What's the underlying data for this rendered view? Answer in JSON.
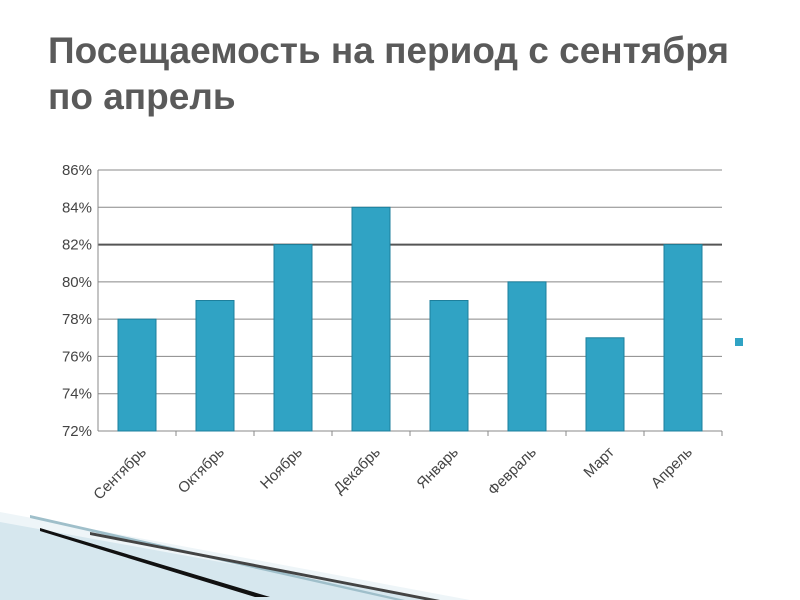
{
  "slide": {
    "title": "Посещаемость на период с сентября по апрель"
  },
  "colors": {
    "bar": "#30a3c4",
    "bar_stroke": "#1d7f9c",
    "grid": "#888888",
    "accent_line": "#555555"
  },
  "chart_data": {
    "type": "bar",
    "title": "",
    "xlabel": "",
    "ylabel": "",
    "categories": [
      "Сентябрь",
      "Октябрь",
      "Ноябрь",
      "Декабрь",
      "Январь",
      "Февраль",
      "Март",
      "Апрель"
    ],
    "series": [
      {
        "values": [
          78,
          79,
          82,
          84,
          79,
          80,
          77,
          82
        ]
      }
    ],
    "ylim": [
      72,
      86
    ],
    "yticks": [
      72,
      74,
      76,
      78,
      80,
      82,
      84,
      86
    ],
    "ytick_labels": [
      "72%",
      "74%",
      "76%",
      "78%",
      "80%",
      "82%",
      "84%",
      "86%"
    ],
    "reference_line": 82,
    "grid": true,
    "legend": {
      "position": "right",
      "entries": [
        ""
      ]
    }
  }
}
